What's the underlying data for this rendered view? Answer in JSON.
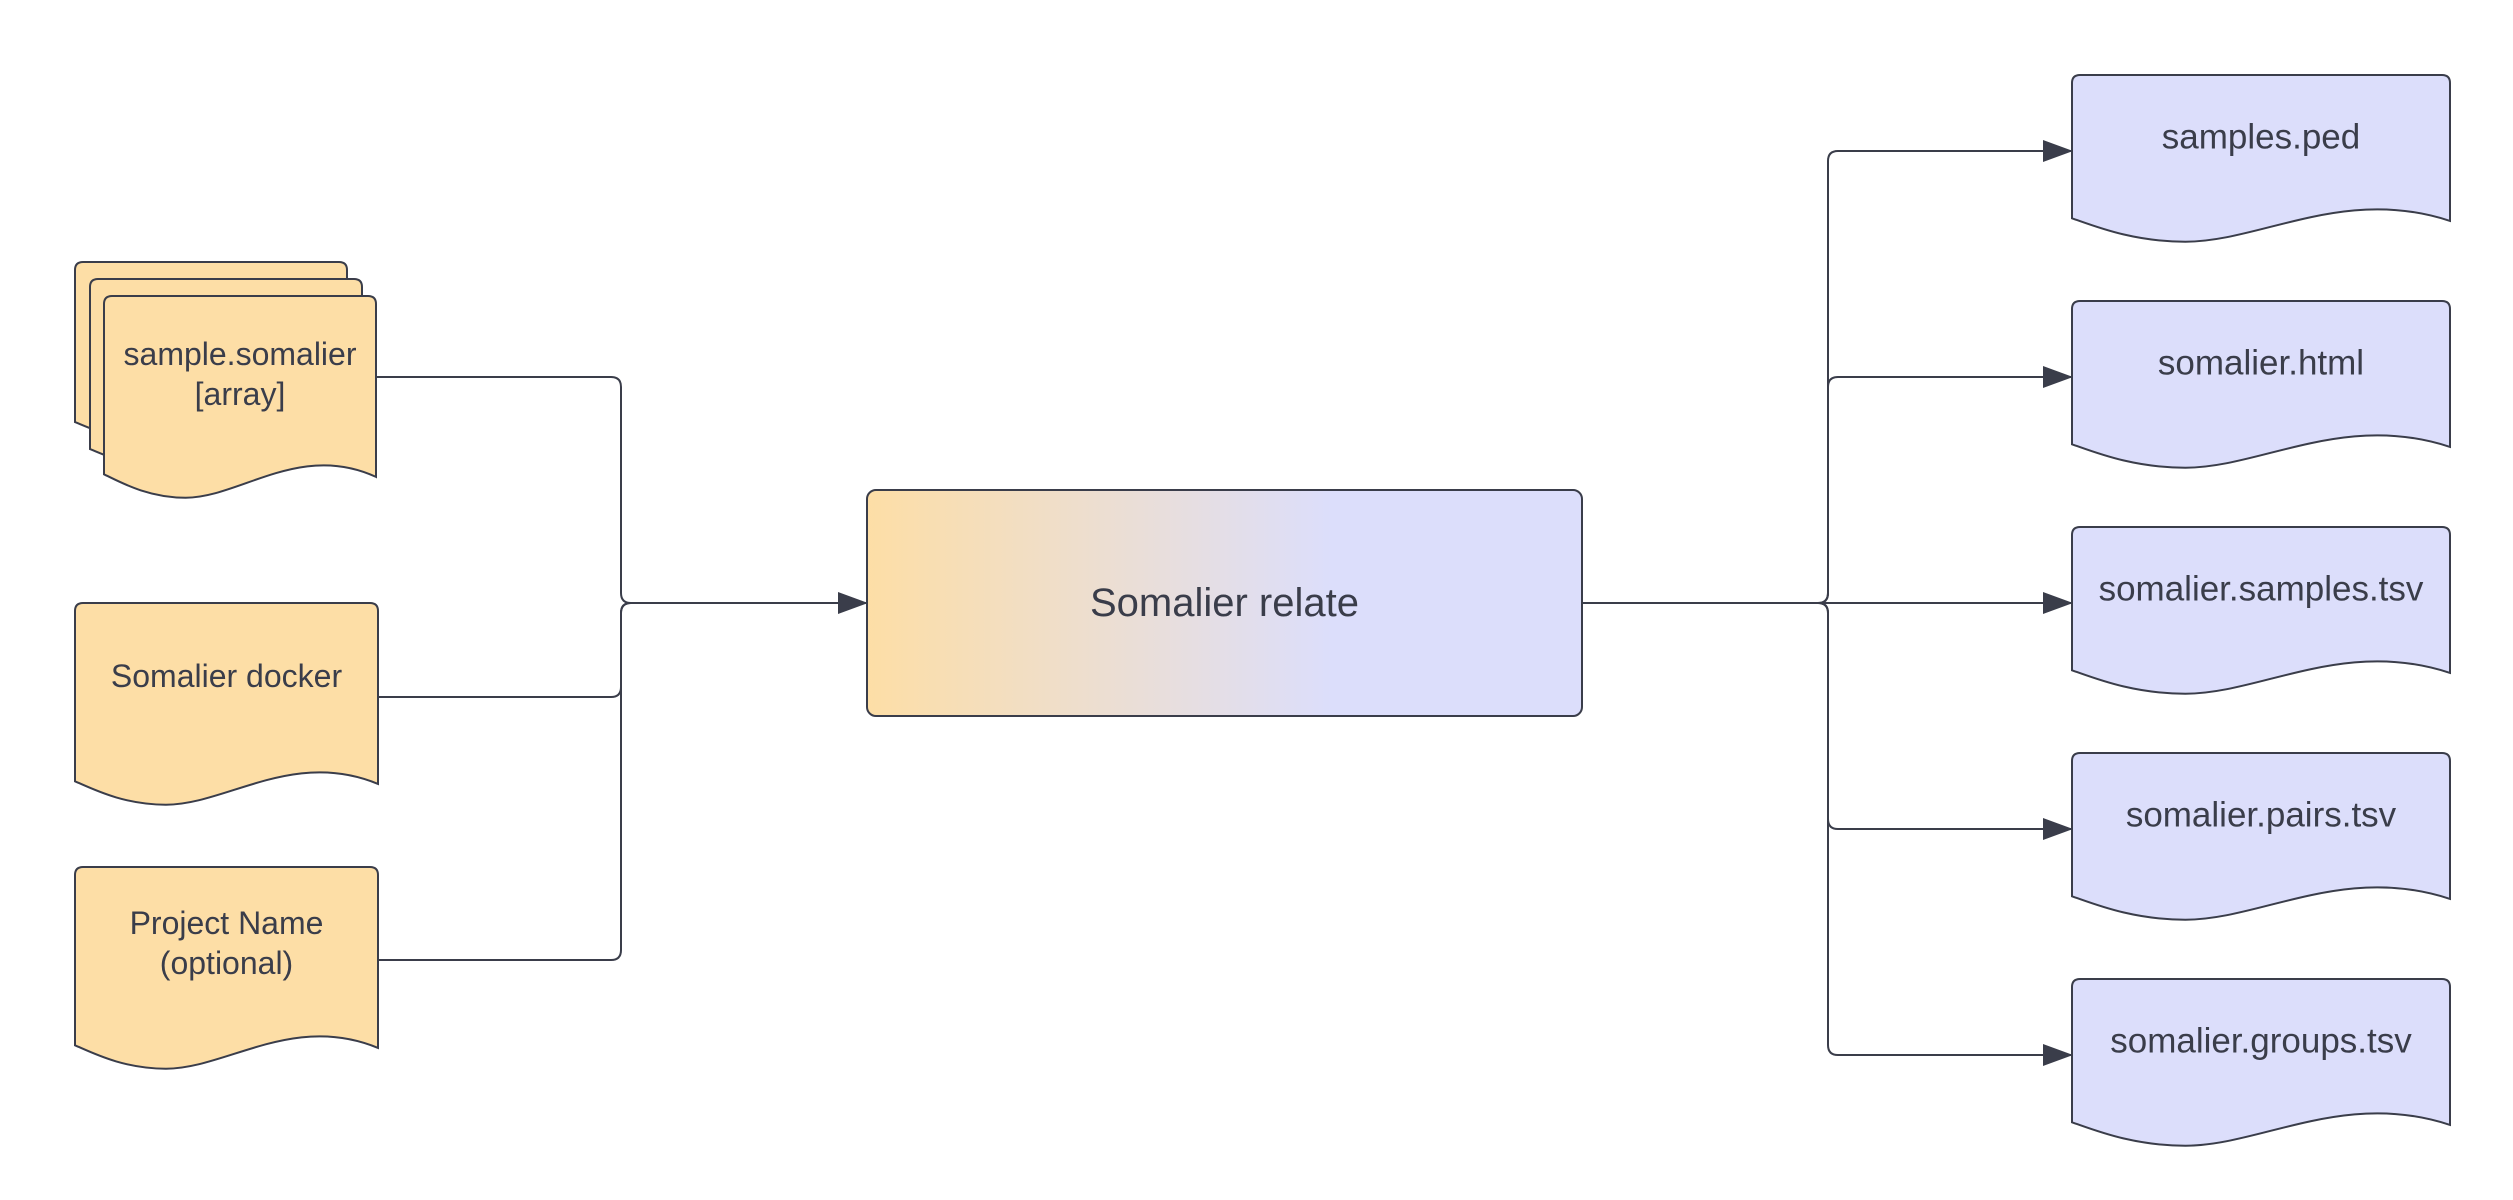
{
  "inputs": [
    {
      "lines": [
        "sample.somalier",
        "[array]"
      ],
      "stacked": true
    },
    {
      "lines": [
        "Somalier docker"
      ],
      "stacked": false
    },
    {
      "lines": [
        "Project Name",
        "(optional)"
      ],
      "stacked": false
    }
  ],
  "process": {
    "label": "Somalier relate"
  },
  "outputs": [
    {
      "label": "samples.ped"
    },
    {
      "label": "somalier.html"
    },
    {
      "label": "somalier.samples.tsv"
    },
    {
      "label": "somalier.pairs.tsv"
    },
    {
      "label": "somalier.groups.tsv"
    }
  ],
  "colors": {
    "input_fill": "#fddea6",
    "output_fill": "#dcdefb",
    "line": "#3a3d4a",
    "text": "#3a3d4a"
  }
}
